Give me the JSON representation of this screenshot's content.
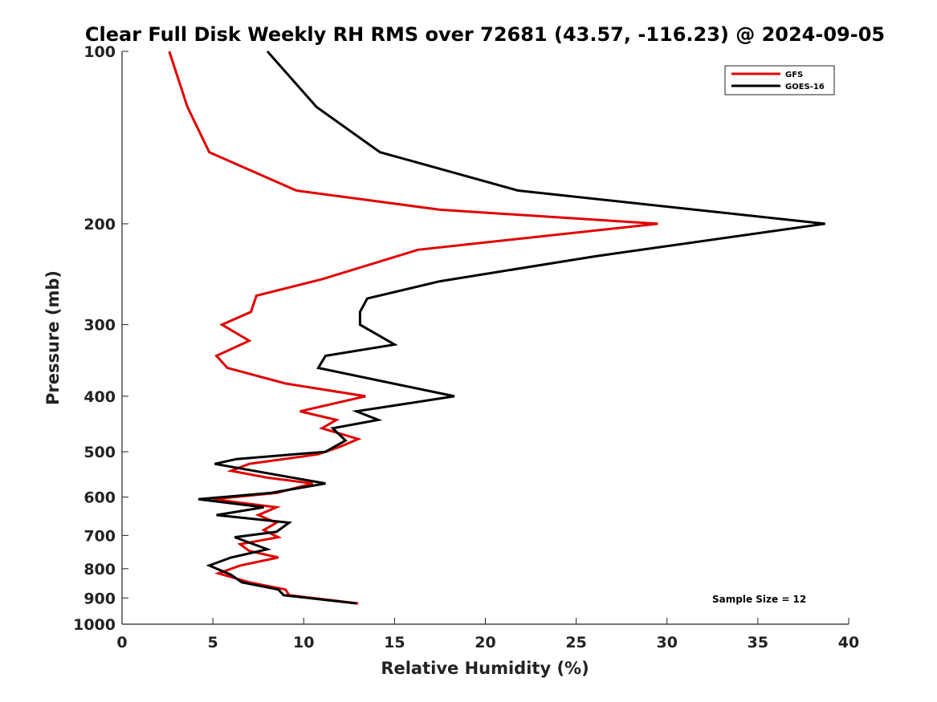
{
  "chart_data": {
    "type": "line",
    "title": "Clear Full Disk Weekly RH RMS over 72681 (43.57, -116.23) @ 2024-09-05",
    "xlabel": "Relative Humidity (%)",
    "ylabel": "Pressure (mb)",
    "xlim": [
      0,
      40
    ],
    "ylim": [
      1000,
      100
    ],
    "y_scale": "log",
    "x_ticks": [
      0,
      5,
      10,
      15,
      20,
      25,
      30,
      35,
      40
    ],
    "y_ticks": [
      100,
      200,
      300,
      400,
      500,
      600,
      700,
      800,
      900,
      1000
    ],
    "grid": false,
    "legend_position": "top-right",
    "annotation": "Sample Size = 12",
    "series": [
      {
        "name": "GFS",
        "color": "#e00000",
        "points": [
          [
            2.6,
            100
          ],
          [
            3.6,
            125
          ],
          [
            4.8,
            150
          ],
          [
            9.6,
            175
          ],
          [
            17.5,
            189
          ],
          [
            29.5,
            200
          ],
          [
            16.3,
            222
          ],
          [
            11.0,
            250
          ],
          [
            7.4,
            267
          ],
          [
            7.1,
            285
          ],
          [
            5.5,
            300
          ],
          [
            7.0,
            320
          ],
          [
            5.2,
            340
          ],
          [
            5.8,
            357
          ],
          [
            9.0,
            380
          ],
          [
            13.4,
            400
          ],
          [
            9.8,
            425
          ],
          [
            11.8,
            440
          ],
          [
            11.0,
            455
          ],
          [
            13.0,
            475
          ],
          [
            12.0,
            490
          ],
          [
            10.8,
            505
          ],
          [
            7.0,
            525
          ],
          [
            6.0,
            540
          ],
          [
            8.0,
            555
          ],
          [
            10.5,
            568
          ],
          [
            8.5,
            590
          ],
          [
            5.0,
            605
          ],
          [
            8.5,
            625
          ],
          [
            7.5,
            645
          ],
          [
            8.5,
            665
          ],
          [
            7.8,
            685
          ],
          [
            8.6,
            705
          ],
          [
            6.5,
            725
          ],
          [
            7.0,
            745
          ],
          [
            8.6,
            765
          ],
          [
            6.5,
            790
          ],
          [
            5.3,
            815
          ],
          [
            7.0,
            845
          ],
          [
            9.0,
            870
          ],
          [
            9.2,
            890
          ],
          [
            13.0,
            920
          ]
        ]
      },
      {
        "name": "GOES-16",
        "color": "#000000",
        "points": [
          [
            8.0,
            100
          ],
          [
            10.7,
            125
          ],
          [
            14.2,
            150
          ],
          [
            21.8,
            175
          ],
          [
            38.7,
            200
          ],
          [
            26.0,
            228
          ],
          [
            17.5,
            252
          ],
          [
            13.5,
            270
          ],
          [
            13.1,
            285
          ],
          [
            13.1,
            300
          ],
          [
            15.0,
            325
          ],
          [
            11.2,
            340
          ],
          [
            10.8,
            357
          ],
          [
            18.3,
            400
          ],
          [
            12.9,
            425
          ],
          [
            14.1,
            440
          ],
          [
            11.6,
            455
          ],
          [
            12.3,
            478
          ],
          [
            11.2,
            500
          ],
          [
            6.3,
            515
          ],
          [
            5.1,
            525
          ],
          [
            11.2,
            568
          ],
          [
            8.2,
            590
          ],
          [
            4.2,
            605
          ],
          [
            7.8,
            625
          ],
          [
            5.2,
            645
          ],
          [
            9.2,
            665
          ],
          [
            8.5,
            690
          ],
          [
            6.2,
            705
          ],
          [
            8.0,
            740
          ],
          [
            6.0,
            765
          ],
          [
            4.8,
            790
          ],
          [
            6.0,
            820
          ],
          [
            6.6,
            845
          ],
          [
            8.6,
            870
          ],
          [
            8.9,
            890
          ],
          [
            12.9,
            920
          ]
        ]
      }
    ]
  }
}
